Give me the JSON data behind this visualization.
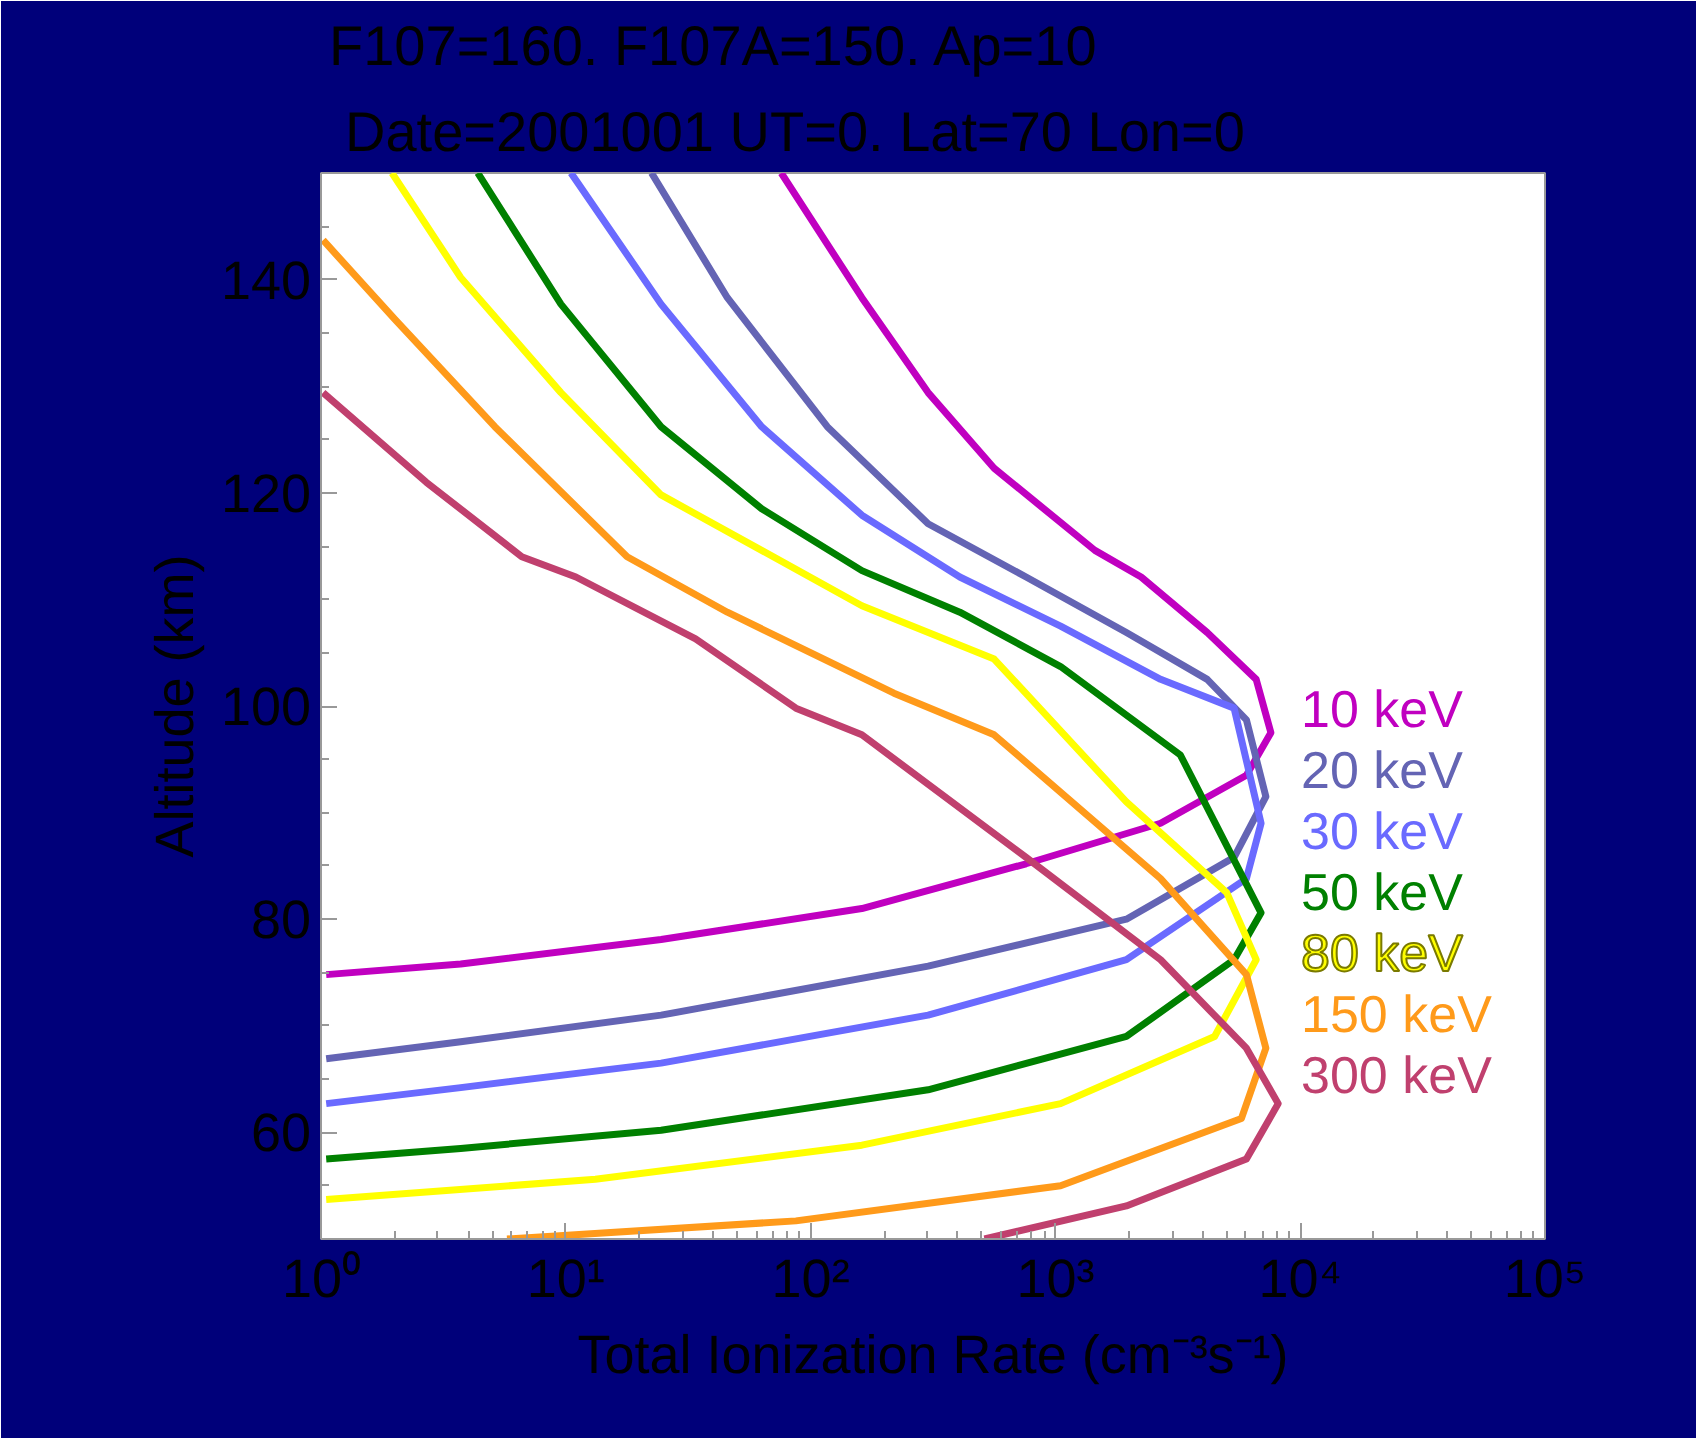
{
  "chart_data": {
    "type": "line",
    "title": "F107=160. F107A=150. Ap=10",
    "subtitle": "Date=2001001 UT=0. Lat=70 Lon=0",
    "xlabel": "Total Ionization Rate (cm⁻³s⁻¹)",
    "ylabel": "Altitude (km)",
    "log": "x",
    "grid": false,
    "legend": false,
    "marker": "none",
    "line_style": "solid",
    "xlim": [
      1,
      100000
    ],
    "ylim": [
      50,
      150
    ],
    "xticks": [
      {
        "value": 1,
        "label": "10⁰"
      },
      {
        "value": 10,
        "label": "10¹"
      },
      {
        "value": 100,
        "label": "10²"
      },
      {
        "value": 1000,
        "label": "10³"
      },
      {
        "value": 10000,
        "label": "10⁴"
      },
      {
        "value": 100000,
        "label": "10⁵"
      }
    ],
    "yticks": [
      60,
      80,
      100,
      120,
      140
    ],
    "series": [
      {
        "name": "10 keV",
        "color": "#c000c0",
        "x": [
          75.9,
          162,
          302,
          562,
          1450,
          2240,
          4170,
          6610,
          7240,
          7590,
          6030,
          2690,
          759,
          162,
          24.5,
          3.72,
          1.05
        ],
        "values": [
          150,
          138.3,
          129.4,
          122.3,
          114.6,
          112.1,
          106.9,
          102.5,
          99.2,
          97.5,
          93.5,
          89.0,
          85.2,
          81.0,
          78.1,
          75.8,
          74.8
        ]
      },
      {
        "name": "20 keV",
        "color": "#6464b4",
        "x": [
          22.4,
          45.7,
          117,
          302,
          759,
          1950,
          4170,
          6030,
          7240,
          5370,
          1950,
          302,
          24.5,
          3.72,
          1.05
        ],
        "values": [
          150,
          138.3,
          126.2,
          117.1,
          112.1,
          106.9,
          102.5,
          98.7,
          91.5,
          85.8,
          80.0,
          75.6,
          71.0,
          68.5,
          66.9
        ]
      },
      {
        "name": "30 keV",
        "color": "#6a6aff",
        "x": [
          10.5,
          24.5,
          63.1,
          162,
          407,
          1050,
          2690,
          5370,
          6920,
          6030,
          1950,
          302,
          24.5,
          3.72,
          1.05
        ],
        "values": [
          150,
          137.7,
          126.2,
          117.9,
          112.1,
          107.5,
          102.5,
          99.8,
          89.0,
          83.8,
          76.2,
          71.0,
          66.5,
          64.2,
          62.7
        ]
      },
      {
        "name": "50 keV",
        "color": "#008000",
        "x": [
          4.37,
          9.55,
          24.5,
          63.1,
          162,
          407,
          1050,
          3240,
          6920,
          5370,
          1950,
          302,
          24.5,
          3.72,
          1.05
        ],
        "values": [
          150,
          137.7,
          126.2,
          118.5,
          112.7,
          108.8,
          103.7,
          95.4,
          80.6,
          76.2,
          69.0,
          64.0,
          60.2,
          58.5,
          57.5
        ]
      },
      {
        "name": "80 keV",
        "color": "#ffff00",
        "x": [
          1.95,
          3.72,
          9.55,
          24.5,
          63.1,
          162,
          562,
          1950,
          5010,
          6610,
          4470,
          1050,
          162,
          13.2,
          1.05
        ],
        "values": [
          150,
          140.2,
          129.4,
          119.8,
          114.6,
          109.4,
          104.4,
          91.0,
          82.5,
          76.2,
          69.0,
          62.7,
          58.8,
          55.6,
          53.7
        ]
      },
      {
        "name": "150 keV",
        "color": "#ff9a1a",
        "x": [
          1.02,
          2.0,
          5.13,
          17.8,
          45.7,
          219,
          562,
          2690,
          6030,
          7240,
          5750,
          1050,
          87.1,
          5.75
        ],
        "values": [
          143.7,
          136.3,
          126.2,
          114.0,
          108.8,
          101.2,
          97.3,
          83.8,
          74.8,
          67.9,
          61.3,
          55.0,
          51.7,
          50
        ]
      },
      {
        "name": "300 keV",
        "color": "#c0406e",
        "x": [
          1.02,
          2.69,
          6.61,
          11.0,
          33.9,
          87.1,
          162,
          759,
          2690,
          6030,
          8130,
          6030,
          1950,
          513
        ],
        "values": [
          129.4,
          121.0,
          114.0,
          112.1,
          106.3,
          99.8,
          97.3,
          85.8,
          76.2,
          67.9,
          62.7,
          57.5,
          53.1,
          50
        ]
      }
    ]
  }
}
